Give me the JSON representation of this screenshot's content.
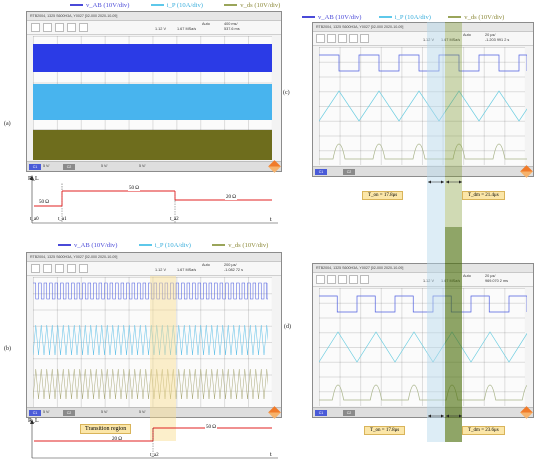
{
  "legend": {
    "vab": "v_AB (10V/div)",
    "ip": "i_P (10A/div)",
    "vds": "v_ds (10V/div)",
    "colors": {
      "vab": "#4a4ad8",
      "ip": "#5ec8ea",
      "vds": "#9aa55a"
    }
  },
  "panels": {
    "a": {
      "label": "(a)"
    },
    "b": {
      "label": "(b)"
    },
    "c": {
      "label": "(c)"
    },
    "d": {
      "label": "(d)"
    }
  },
  "scope": {
    "top_left": {
      "title": "RTB2004, 1325 S600H3A, Y0027 [02-000 2020-10-09]",
      "trig_level": "1.12 V",
      "rate": "1.67 MSa/s",
      "mode": "Auto",
      "timebase": "400 ms/",
      "offset": "537.6 ms",
      "channels": [
        "5 V/",
        "5 V/",
        "5 V/"
      ]
    },
    "bottom_left": {
      "title": "RTB2004, 1325 S600H3A, Y0027 [02-000 2020-10-09]",
      "trig_level": "1.12 V",
      "rate": "1.67 MSa/s",
      "mode": "Auto",
      "timebase": "200 µs/",
      "offset": "-1.082 72 s",
      "channels": [
        "5 V/",
        "5 V/",
        "5 V/"
      ]
    },
    "top_right": {
      "title": "RTB2004, 1325 S600H3A, Y0027 [02-000 2020-10-09]",
      "trig_level": "1.12 V",
      "rate": "1.67 MSa/s",
      "mode": "Auto",
      "timebase": "20 µs/",
      "offset": "-1.203 991 2 s"
    },
    "bottom_right": {
      "title": "RTB2004, 1325 S600H3A, Y0027 [02-000 2020-10-09]",
      "trig_level": "1.12 V",
      "rate": "1.67 MSa/s",
      "mode": "Auto",
      "timebase": "20 µs/",
      "offset": "969.070 2 ms"
    }
  },
  "load_a": {
    "axis_y": "R_L",
    "axis_x": "t",
    "t0": "t_a0",
    "t1": "t_a1",
    "t2": "t_a2",
    "r1": "50 Ω",
    "r2": "50 Ω",
    "r3": "20 Ω"
  },
  "load_b": {
    "axis_y": "R_L",
    "axis_x": "t",
    "t1": "t_a2",
    "r1": "20 Ω",
    "r2": "50 Ω",
    "transition": "Transition region"
  },
  "annot_c": {
    "left": "T_on = 17.8μs",
    "right": "T_dm = 21.4μs"
  },
  "annot_d": {
    "left": "T_on = 17.8μs",
    "right": "T_dm = 23.6μs"
  }
}
